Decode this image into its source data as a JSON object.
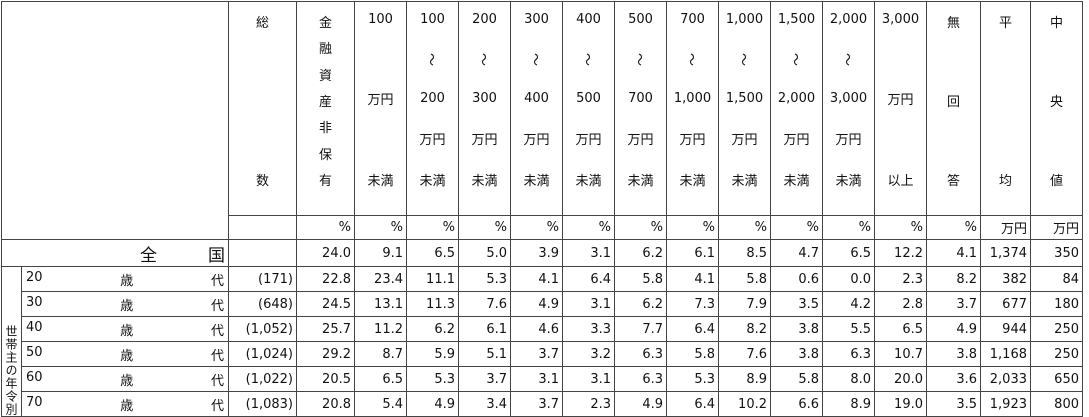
{
  "header": {
    "columns": [
      [
        "総",
        "数"
      ],
      [
        "金",
        "融",
        "資",
        "産",
        "非",
        "保",
        "有"
      ],
      [
        "100",
        "万円",
        "未満"
      ],
      [
        "100",
        "～",
        "200",
        "万円",
        "未満"
      ],
      [
        "200",
        "～",
        "300",
        "万円",
        "未満"
      ],
      [
        "300",
        "～",
        "400",
        "万円",
        "未満"
      ],
      [
        "400",
        "～",
        "500",
        "万円",
        "未満"
      ],
      [
        "500",
        "～",
        "700",
        "万円",
        "未満"
      ],
      [
        "700",
        "～",
        "1,000",
        "万円",
        "未満"
      ],
      [
        "1,000",
        "～",
        "1,500",
        "万円",
        "未満"
      ],
      [
        "1,500",
        "～",
        "2,000",
        "万円",
        "未満"
      ],
      [
        "2,000",
        "～",
        "3,000",
        "万円",
        "未満"
      ],
      [
        "3,000",
        "万円",
        "以上"
      ],
      [
        "無",
        "回",
        "答"
      ],
      [
        "平",
        "均"
      ],
      [
        "中",
        "央",
        "値"
      ]
    ],
    "units": [
      "%",
      "%",
      "%",
      "%",
      "%",
      "%",
      "%",
      "%",
      "%",
      "%",
      "%",
      "%",
      "%",
      "万円",
      "万円"
    ]
  },
  "rows": [
    {
      "label": "全　　　国",
      "values": [
        "24.0",
        "9.1",
        "6.5",
        "5.0",
        "3.9",
        "3.1",
        "6.2",
        "6.1",
        "8.5",
        "4.7",
        "6.5",
        "12.2",
        "4.1",
        "1,374",
        "350"
      ]
    }
  ],
  "group": {
    "label": "世帯主の年令別",
    "rows": [
      {
        "label": [
          "20",
          "歳",
          "代"
        ],
        "count": "(171)",
        "values": [
          "22.8",
          "23.4",
          "11.1",
          "5.3",
          "4.1",
          "6.4",
          "5.8",
          "4.1",
          "5.8",
          "0.6",
          "0.0",
          "2.3",
          "8.2",
          "382",
          "84"
        ]
      },
      {
        "label": [
          "30",
          "歳",
          "代"
        ],
        "count": "(648)",
        "values": [
          "24.5",
          "13.1",
          "11.3",
          "7.6",
          "4.9",
          "3.1",
          "6.2",
          "7.3",
          "7.9",
          "3.5",
          "4.2",
          "2.8",
          "3.7",
          "677",
          "180"
        ]
      },
      {
        "label": [
          "40",
          "歳",
          "代"
        ],
        "count": "(1,052)",
        "values": [
          "25.7",
          "11.2",
          "6.2",
          "6.1",
          "4.6",
          "3.3",
          "7.7",
          "6.4",
          "8.2",
          "3.8",
          "5.5",
          "6.5",
          "4.9",
          "944",
          "250"
        ]
      },
      {
        "label": [
          "50",
          "歳",
          "代"
        ],
        "count": "(1,024)",
        "values": [
          "29.2",
          "8.7",
          "5.9",
          "5.1",
          "3.7",
          "3.2",
          "6.3",
          "5.8",
          "7.6",
          "3.8",
          "6.3",
          "10.7",
          "3.8",
          "1,168",
          "250"
        ]
      },
      {
        "label": [
          "60",
          "歳",
          "代"
        ],
        "count": "(1,022)",
        "values": [
          "20.5",
          "6.5",
          "5.3",
          "3.7",
          "3.1",
          "3.1",
          "6.3",
          "5.3",
          "8.9",
          "5.8",
          "8.0",
          "20.0",
          "3.6",
          "2,033",
          "650"
        ]
      },
      {
        "label": [
          "70",
          "歳",
          "代"
        ],
        "count": "(1,083)",
        "values": [
          "20.8",
          "5.4",
          "4.9",
          "3.4",
          "3.7",
          "2.3",
          "4.9",
          "6.4",
          "10.2",
          "6.6",
          "8.9",
          "19.0",
          "3.5",
          "1,923",
          "800"
        ]
      }
    ]
  }
}
